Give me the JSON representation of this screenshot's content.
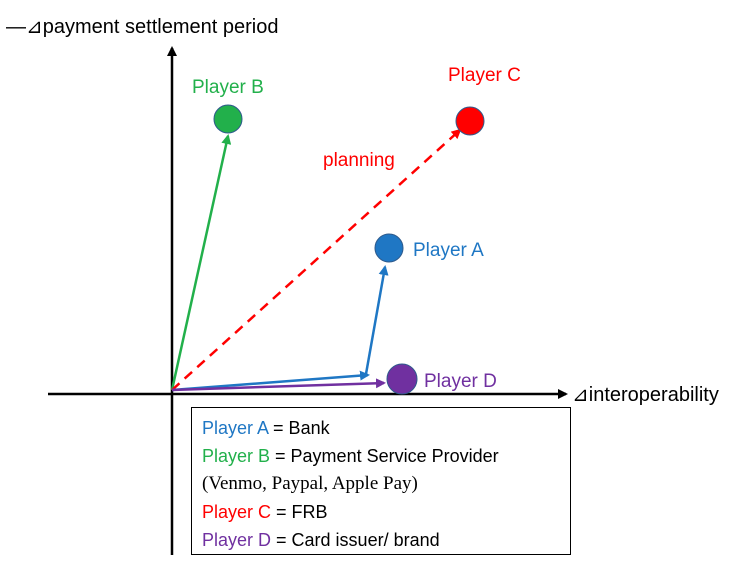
{
  "axes": {
    "y_title": "—⊿payment settlement period",
    "x_title": "⊿interoperability"
  },
  "players": {
    "a": {
      "label": "Player A",
      "color": "#1F77C4"
    },
    "b": {
      "label": "Player B",
      "color": "#22B04B"
    },
    "c": {
      "label": "Player C",
      "color": "#FF0000"
    },
    "d": {
      "label": "Player D",
      "color": "#7030A0"
    }
  },
  "annotation": {
    "planning": "planning"
  },
  "legend": [
    {
      "player": "Player A",
      "desc": " = Bank",
      "color": "#1F77C4"
    },
    {
      "player": "Player B",
      "desc": " = Payment Service Provider",
      "color": "#22B04B"
    },
    {
      "player": "",
      "desc": "(Venmo, Paypal, Apple Pay)",
      "color": "#000000"
    },
    {
      "player": "Player C",
      "desc": " = FRB",
      "color": "#FF0000"
    },
    {
      "player": "Player D",
      "desc": " = Card issuer/ brand",
      "color": "#7030A0"
    }
  ]
}
